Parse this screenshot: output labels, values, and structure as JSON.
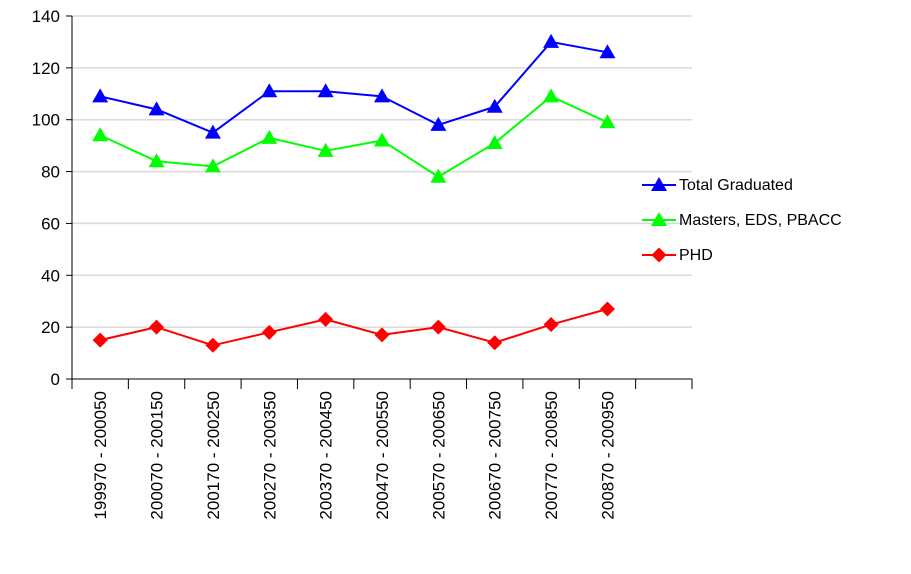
{
  "chart_data": {
    "type": "line",
    "title": "",
    "xlabel": "",
    "ylabel": "",
    "ylim": [
      0,
      140
    ],
    "yticks": [
      0,
      20,
      40,
      60,
      80,
      100,
      120,
      140
    ],
    "grid": true,
    "legend_position": "right",
    "categories": [
      "199970 - 200050",
      "200070 - 200150",
      "200170 - 200250",
      "200270 - 200350",
      "200370 - 200450",
      "200470 - 200550",
      "200570 - 200650",
      "200670 - 200750",
      "200770 - 200850",
      "200870 - 200950"
    ],
    "series": [
      {
        "name": "Total Graduated",
        "color": "#0000ff",
        "marker": "triangle",
        "values": [
          109,
          104,
          95,
          111,
          111,
          109,
          98,
          105,
          130,
          126
        ]
      },
      {
        "name": "Masters, EDS, PBACC",
        "color": "#00ff00",
        "marker": "triangle",
        "values": [
          94,
          84,
          82,
          93,
          88,
          92,
          78,
          91,
          109,
          99
        ]
      },
      {
        "name": "PHD",
        "color": "#ff0000",
        "marker": "diamond",
        "values": [
          15,
          20,
          13,
          18,
          23,
          17,
          20,
          14,
          21,
          27
        ]
      }
    ]
  }
}
